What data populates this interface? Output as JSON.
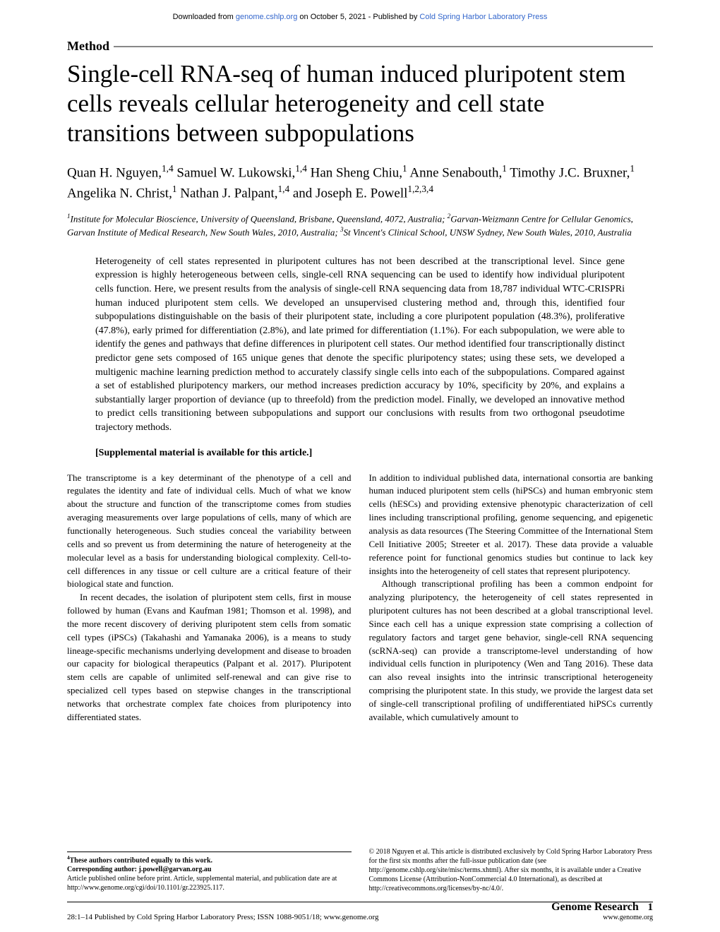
{
  "download_header": {
    "prefix": "Downloaded from ",
    "link1": "genome.cshlp.org",
    "middle": " on October 5, 2021 - Published by ",
    "link2": "Cold Spring Harbor Laboratory Press"
  },
  "method_label": "Method",
  "title": "Single-cell RNA-seq of human induced pluripotent stem cells reveals cellular heterogeneity and cell state transitions between subpopulations",
  "authors_html": "Quan H. Nguyen,<sup>1,4</sup> Samuel W. Lukowski,<sup>1,4</sup> Han Sheng Chiu,<sup>1</sup> Anne Senabouth,<sup>1</sup> Timothy J.C. Bruxner,<sup>1</sup> Angelika N. Christ,<sup>1</sup> Nathan J. Palpant,<sup>1,4</sup> and Joseph E. Powell<sup>1,2,3,4</sup>",
  "affiliations_html": "<sup>1</sup>Institute for Molecular Bioscience, University of Queensland, Brisbane, Queensland, 4072, Australia; <sup>2</sup>Garvan-Weizmann Centre for Cellular Genomics, Garvan Institute of Medical Research, New South Wales, 2010, Australia; <sup>3</sup>St Vincent's Clinical School, UNSW Sydney, New South Wales, 2010, Australia",
  "abstract": "Heterogeneity of cell states represented in pluripotent cultures has not been described at the transcriptional level. Since gene expression is highly heterogeneous between cells, single-cell RNA sequencing can be used to identify how individual pluripotent cells function. Here, we present results from the analysis of single-cell RNA sequencing data from 18,787 individual WTC-CRISPRi human induced pluripotent stem cells. We developed an unsupervised clustering method and, through this, identified four subpopulations distinguishable on the basis of their pluripotent state, including a core pluripotent population (48.3%), proliferative (47.8%), early primed for differentiation (2.8%), and late primed for differentiation (1.1%). For each subpopulation, we were able to identify the genes and pathways that define differences in pluripotent cell states. Our method identified four transcriptionally distinct predictor gene sets composed of 165 unique genes that denote the specific pluripotency states; using these sets, we developed a multigenic machine learning prediction method to accurately classify single cells into each of the subpopulations. Compared against a set of established pluripotency markers, our method increases prediction accuracy by 10%, specificity by 20%, and explains a substantially larger proportion of deviance (up to threefold) from the prediction model. Finally, we developed an innovative method to predict cells transitioning between subpopulations and support our conclusions with results from two orthogonal pseudotime trajectory methods.",
  "supplemental": "[Supplemental material is available for this article.]",
  "body": {
    "left": {
      "p1": "The transcriptome is a key determinant of the phenotype of a cell and regulates the identity and fate of individual cells. Much of what we know about the structure and function of the transcriptome comes from studies averaging measurements over large populations of cells, many of which are functionally heterogeneous. Such studies conceal the variability between cells and so prevent us from determining the nature of heterogeneity at the molecular level as a basis for understanding biological complexity. Cell-to-cell differences in any tissue or cell culture are a critical feature of their biological state and function.",
      "p2": "In recent decades, the isolation of pluripotent stem cells, first in mouse followed by human (Evans and Kaufman 1981; Thomson et al. 1998), and the more recent discovery of deriving pluripotent stem cells from somatic cell types (iPSCs) (Takahashi and Yamanaka 2006), is a means to study lineage-specific mechanisms underlying development and disease to broaden our capacity for biological therapeutics (Palpant et al. 2017). Pluripotent stem cells are capable of unlimited self-renewal and can give rise to specialized cell types based on stepwise changes in the transcriptional networks that orchestrate complex fate choices from pluripotency into differentiated states."
    },
    "right": {
      "p1": "In addition to individual published data, international consortia are banking human induced pluripotent stem cells (hiPSCs) and human embryonic stem cells (hESCs) and providing extensive phenotypic characterization of cell lines including transcriptional profiling, genome sequencing, and epigenetic analysis as data resources (The Steering Committee of the International Stem Cell Initiative 2005; Streeter et al. 2017). These data provide a valuable reference point for functional genomics studies but continue to lack key insights into the heterogeneity of cell states that represent pluripotency.",
      "p2": "Although transcriptional profiling has been a common endpoint for analyzing pluripotency, the heterogeneity of cell states represented in pluripotent cultures has not been described at a global transcriptional level. Since each cell has a unique expression state comprising a collection of regulatory factors and target gene behavior, single-cell RNA sequencing (scRNA-seq) can provide a transcriptome-level understanding of how individual cells function in pluripotency (Wen and Tang 2016). These data can also reveal insights into the intrinsic transcriptional heterogeneity comprising the pluripotent state. In this study, we provide the largest data set of single-cell transcriptional profiling of undifferentiated hiPSCs currently available, which cumulatively amount to"
    }
  },
  "footnotes": {
    "left": {
      "equal": "4These authors contributed equally to this work.",
      "corresponding": "Corresponding author: j.powell@garvan.org.au",
      "article": "Article published online before print. Article, supplemental material, and publication date are at http://www.genome.org/cgi/doi/10.1101/gr.223925.117."
    },
    "right": "© 2018 Nguyen et al.   This article is distributed exclusively by Cold Spring Harbor Laboratory Press for the first six months after the full-issue publication date (see http://genome.cshlp.org/site/misc/terms.xhtml). After six months, it is available under a Creative Commons License (Attribution-NonCommercial 4.0 International), as described at http://creativecommons.org/licenses/by-nc/4.0/."
  },
  "page_footer": {
    "left": "28:1–14 Published by Cold Spring Harbor Laboratory Press; ISSN 1088-9051/18; www.genome.org",
    "brand": "Genome Research",
    "page": "1",
    "url": "www.genome.org"
  }
}
